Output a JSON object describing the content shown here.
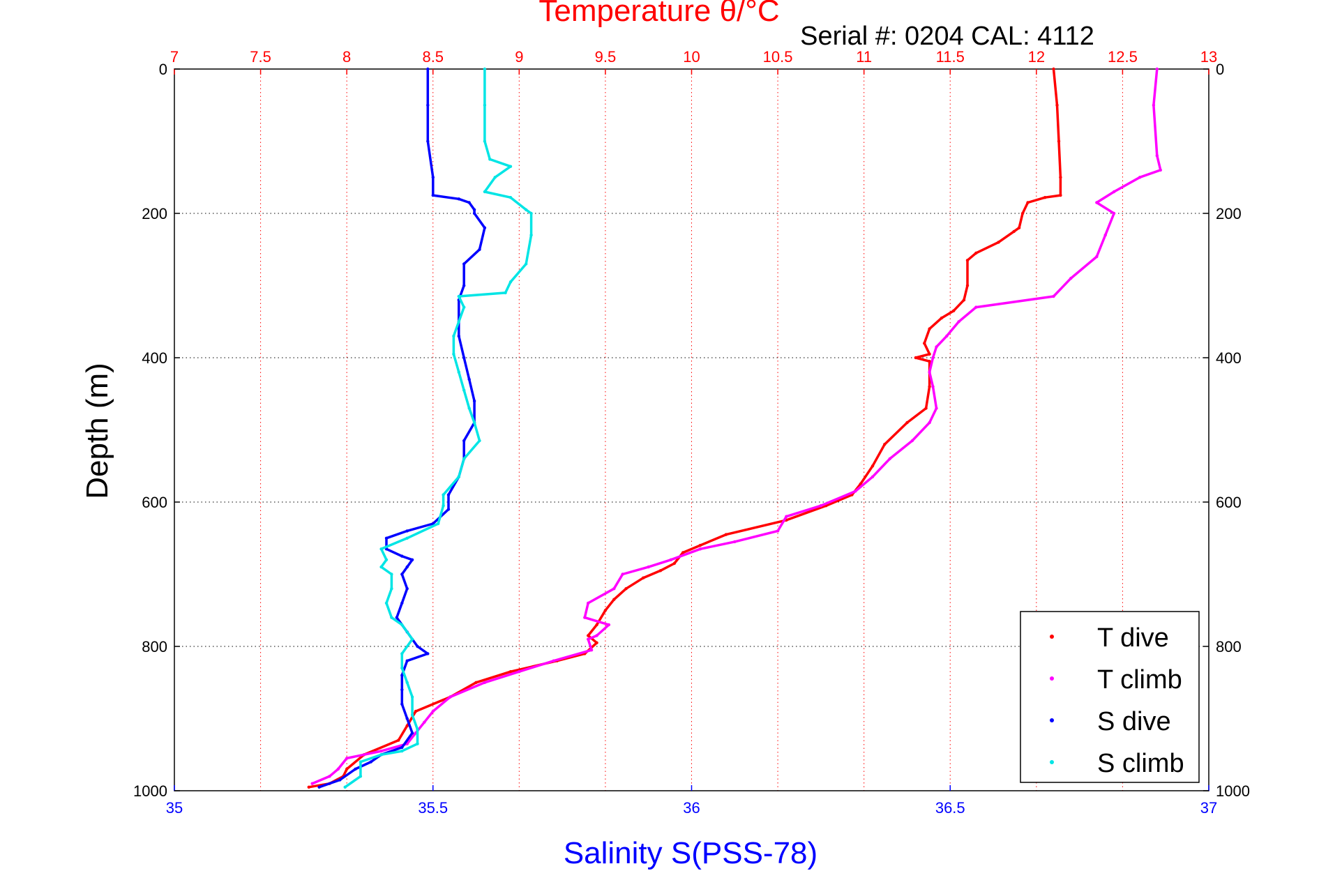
{
  "chart_data": {
    "type": "scatter",
    "title": "Temperature θ/°C",
    "subtitle": "Serial #: 0204  CAL: 4112",
    "xlabel": "Salinity S(PSS-78)",
    "ylabel": "Depth (m)",
    "xlim": [
      35,
      37
    ],
    "x2lim": [
      7,
      13
    ],
    "ylim": [
      1000,
      0
    ],
    "y_reversed": true,
    "grid": true,
    "legend_position": "bottom-right",
    "colors": {
      "temperature_axis": "#ff0000",
      "salinity_axis": "#0000ff",
      "grid": "#000000"
    },
    "x_ticks": [
      "35",
      "35.5",
      "36",
      "36.5",
      "37"
    ],
    "x_tick_values": [
      35,
      35.5,
      36,
      36.5,
      37
    ],
    "x2_ticks": [
      "7",
      "7.5",
      "8",
      "8.5",
      "9",
      "9.5",
      "10",
      "10.5",
      "11",
      "11.5",
      "12",
      "12.5",
      "13"
    ],
    "x2_tick_values": [
      7,
      7.5,
      8,
      8.5,
      9,
      9.5,
      10,
      10.5,
      11,
      11.5,
      12,
      12.5,
      13
    ],
    "y_ticks": [
      "0",
      "200",
      "400",
      "600",
      "800",
      "1000"
    ],
    "y_tick_values": [
      0,
      200,
      400,
      600,
      800,
      1000
    ],
    "series": [
      {
        "name": "T dive",
        "color": "#ff0000",
        "axis": "temperature",
        "points": [
          [
            12.1,
            0
          ],
          [
            12.12,
            50
          ],
          [
            12.13,
            100
          ],
          [
            12.14,
            150
          ],
          [
            12.14,
            175
          ],
          [
            12.05,
            178
          ],
          [
            11.95,
            185
          ],
          [
            11.92,
            200
          ],
          [
            11.9,
            220
          ],
          [
            11.87,
            225
          ],
          [
            11.78,
            240
          ],
          [
            11.65,
            255
          ],
          [
            11.6,
            265
          ],
          [
            11.6,
            300
          ],
          [
            11.58,
            320
          ],
          [
            11.52,
            335
          ],
          [
            11.45,
            345
          ],
          [
            11.38,
            360
          ],
          [
            11.35,
            380
          ],
          [
            11.38,
            395
          ],
          [
            11.3,
            400
          ],
          [
            11.38,
            405
          ],
          [
            11.38,
            440
          ],
          [
            11.36,
            470
          ],
          [
            11.25,
            490
          ],
          [
            11.12,
            520
          ],
          [
            11.05,
            550
          ],
          [
            10.98,
            575
          ],
          [
            10.93,
            590
          ],
          [
            10.78,
            605
          ],
          [
            10.55,
            625
          ],
          [
            10.2,
            645
          ],
          [
            10.05,
            660
          ],
          [
            9.95,
            670
          ],
          [
            9.9,
            685
          ],
          [
            9.82,
            695
          ],
          [
            9.72,
            705
          ],
          [
            9.62,
            720
          ],
          [
            9.55,
            735
          ],
          [
            9.5,
            750
          ],
          [
            9.45,
            770
          ],
          [
            9.4,
            785
          ],
          [
            9.45,
            795
          ],
          [
            9.38,
            810
          ],
          [
            9.22,
            820
          ],
          [
            8.95,
            835
          ],
          [
            8.75,
            850
          ],
          [
            8.6,
            870
          ],
          [
            8.4,
            890
          ],
          [
            8.35,
            910
          ],
          [
            8.3,
            930
          ],
          [
            8.1,
            950
          ],
          [
            8.0,
            970
          ],
          [
            7.98,
            980
          ],
          [
            7.9,
            990
          ],
          [
            7.78,
            995
          ]
        ]
      },
      {
        "name": "T climb",
        "color": "#ff00ff",
        "axis": "temperature",
        "points": [
          [
            12.7,
            0
          ],
          [
            12.68,
            50
          ],
          [
            12.7,
            120
          ],
          [
            12.72,
            140
          ],
          [
            12.6,
            150
          ],
          [
            12.45,
            170
          ],
          [
            12.35,
            185
          ],
          [
            12.45,
            200
          ],
          [
            12.4,
            230
          ],
          [
            12.35,
            260
          ],
          [
            12.2,
            290
          ],
          [
            12.1,
            315
          ],
          [
            11.65,
            330
          ],
          [
            11.55,
            350
          ],
          [
            11.48,
            370
          ],
          [
            11.42,
            385
          ],
          [
            11.4,
            400
          ],
          [
            11.38,
            420
          ],
          [
            11.4,
            440
          ],
          [
            11.42,
            470
          ],
          [
            11.38,
            490
          ],
          [
            11.28,
            515
          ],
          [
            11.15,
            540
          ],
          [
            11.05,
            565
          ],
          [
            10.95,
            585
          ],
          [
            10.75,
            605
          ],
          [
            10.55,
            620
          ],
          [
            10.5,
            640
          ],
          [
            10.25,
            655
          ],
          [
            10.05,
            665
          ],
          [
            9.88,
            680
          ],
          [
            9.75,
            690
          ],
          [
            9.6,
            700
          ],
          [
            9.55,
            720
          ],
          [
            9.4,
            740
          ],
          [
            9.38,
            760
          ],
          [
            9.52,
            770
          ],
          [
            9.45,
            785
          ],
          [
            9.4,
            790
          ],
          [
            9.42,
            805
          ],
          [
            9.2,
            820
          ],
          [
            9.0,
            835
          ],
          [
            8.8,
            850
          ],
          [
            8.6,
            870
          ],
          [
            8.5,
            890
          ],
          [
            8.45,
            905
          ],
          [
            8.4,
            920
          ],
          [
            8.35,
            935
          ],
          [
            8.2,
            945
          ],
          [
            8.0,
            955
          ],
          [
            7.95,
            970
          ],
          [
            7.9,
            980
          ],
          [
            7.8,
            990
          ]
        ]
      },
      {
        "name": "S dive",
        "color": "#0000ff",
        "axis": "salinity",
        "points": [
          [
            35.49,
            0
          ],
          [
            35.49,
            50
          ],
          [
            35.49,
            100
          ],
          [
            35.5,
            150
          ],
          [
            35.5,
            175
          ],
          [
            35.55,
            180
          ],
          [
            35.57,
            185
          ],
          [
            35.58,
            195
          ],
          [
            35.58,
            200
          ],
          [
            35.6,
            220
          ],
          [
            35.59,
            250
          ],
          [
            35.56,
            270
          ],
          [
            35.56,
            300
          ],
          [
            35.55,
            320
          ],
          [
            35.55,
            350
          ],
          [
            35.55,
            370
          ],
          [
            35.56,
            400
          ],
          [
            35.57,
            430
          ],
          [
            35.58,
            460
          ],
          [
            35.58,
            490
          ],
          [
            35.56,
            515
          ],
          [
            35.56,
            540
          ],
          [
            35.55,
            565
          ],
          [
            35.53,
            590
          ],
          [
            35.53,
            610
          ],
          [
            35.5,
            630
          ],
          [
            35.45,
            640
          ],
          [
            35.41,
            650
          ],
          [
            35.41,
            665
          ],
          [
            35.44,
            675
          ],
          [
            35.46,
            680
          ],
          [
            35.45,
            690
          ],
          [
            35.44,
            700
          ],
          [
            35.45,
            720
          ],
          [
            35.44,
            740
          ],
          [
            35.43,
            760
          ],
          [
            35.45,
            780
          ],
          [
            35.47,
            800
          ],
          [
            35.49,
            810
          ],
          [
            35.45,
            820
          ],
          [
            35.44,
            840
          ],
          [
            35.44,
            860
          ],
          [
            35.44,
            880
          ],
          [
            35.45,
            900
          ],
          [
            35.46,
            920
          ],
          [
            35.44,
            940
          ],
          [
            35.4,
            950
          ],
          [
            35.38,
            960
          ],
          [
            35.35,
            970
          ],
          [
            35.32,
            985
          ],
          [
            35.28,
            995
          ]
        ]
      },
      {
        "name": "S climb",
        "color": "#00e5e5",
        "axis": "salinity",
        "points": [
          [
            35.6,
            0
          ],
          [
            35.6,
            50
          ],
          [
            35.6,
            100
          ],
          [
            35.61,
            125
          ],
          [
            35.65,
            135
          ],
          [
            35.62,
            150
          ],
          [
            35.6,
            170
          ],
          [
            35.65,
            178
          ],
          [
            35.68,
            195
          ],
          [
            35.69,
            200
          ],
          [
            35.69,
            230
          ],
          [
            35.68,
            270
          ],
          [
            35.65,
            295
          ],
          [
            35.64,
            310
          ],
          [
            35.55,
            315
          ],
          [
            35.56,
            330
          ],
          [
            35.55,
            350
          ],
          [
            35.54,
            370
          ],
          [
            35.54,
            395
          ],
          [
            35.55,
            420
          ],
          [
            35.56,
            445
          ],
          [
            35.57,
            470
          ],
          [
            35.58,
            490
          ],
          [
            35.59,
            515
          ],
          [
            35.56,
            540
          ],
          [
            35.55,
            565
          ],
          [
            35.52,
            590
          ],
          [
            35.52,
            605
          ],
          [
            35.51,
            630
          ],
          [
            35.45,
            650
          ],
          [
            35.4,
            665
          ],
          [
            35.41,
            680
          ],
          [
            35.4,
            690
          ],
          [
            35.42,
            700
          ],
          [
            35.42,
            720
          ],
          [
            35.41,
            740
          ],
          [
            35.42,
            760
          ],
          [
            35.44,
            770
          ],
          [
            35.46,
            790
          ],
          [
            35.44,
            810
          ],
          [
            35.44,
            830
          ],
          [
            35.45,
            850
          ],
          [
            35.46,
            870
          ],
          [
            35.46,
            895
          ],
          [
            35.47,
            915
          ],
          [
            35.47,
            935
          ],
          [
            35.44,
            945
          ],
          [
            35.4,
            950
          ],
          [
            35.36,
            960
          ],
          [
            35.36,
            980
          ],
          [
            35.33,
            995
          ]
        ]
      }
    ],
    "legend": [
      {
        "label": "T dive",
        "color": "#ff0000"
      },
      {
        "label": "T climb",
        "color": "#ff00ff"
      },
      {
        "label": "S dive",
        "color": "#0000ff"
      },
      {
        "label": "S climb",
        "color": "#00e5e5"
      }
    ]
  }
}
